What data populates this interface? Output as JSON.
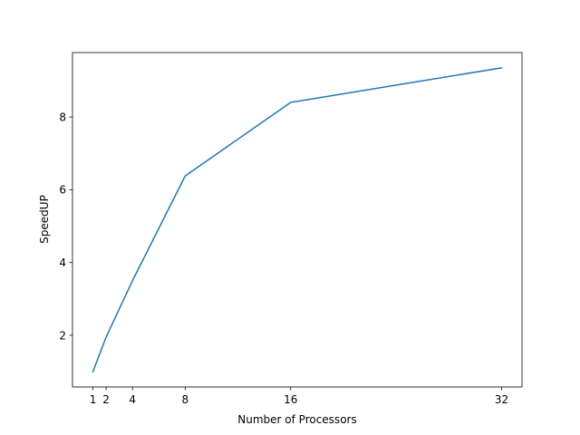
{
  "chart_data": {
    "type": "line",
    "title": "",
    "xlabel": "Number of Processors",
    "ylabel": "SpeedUP",
    "x": [
      1,
      2,
      4,
      8,
      16,
      32
    ],
    "xticks": [
      1,
      2,
      4,
      8,
      16,
      32
    ],
    "yticks": [
      2,
      4,
      6,
      8
    ],
    "xlim": [
      -0.55,
      33.55
    ],
    "ylim": [
      0.58,
      9.77
    ],
    "grid": false,
    "series": [
      {
        "values": [
          1.0,
          1.95,
          3.5,
          6.38,
          8.4,
          9.35
        ],
        "color": "#1f77b4"
      }
    ]
  }
}
